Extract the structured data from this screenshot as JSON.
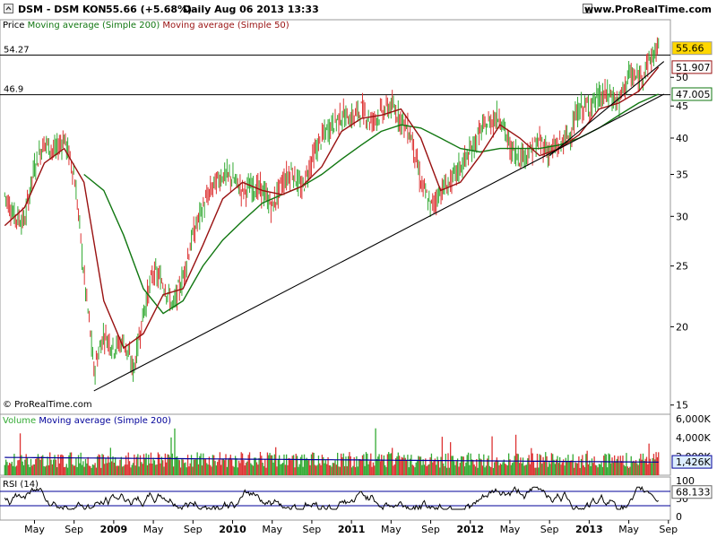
{
  "header": {
    "title": "DSM - DSM KON",
    "price_change": "55.66 (+5.68%)",
    "period_date": "Daily  Aug 06 2013 13:33",
    "site": "www.ProRealTime.com"
  },
  "panels": {
    "price": {
      "legend_price": "Price",
      "legend_ma200": "Moving average (Simple 200)",
      "legend_ma50": "Moving average (Simple 50)",
      "copyright": "© ProRealTime.com"
    },
    "volume": {
      "legend_volume": "Volume",
      "legend_ma": "Moving average (Simple 200)"
    },
    "rsi": {
      "legend": "RSI (14)"
    }
  },
  "colors": {
    "price_up": "#33aa33",
    "price_down": "#dd3333",
    "ma200": "#117711",
    "ma50": "#991111",
    "vol_ma": "#000099",
    "rsi_line": "#000000",
    "rsi_band": "#000099",
    "badge_price": "#ffd700"
  },
  "chart_data": {
    "type": "line",
    "price_axis": {
      "scale": "log",
      "ticks": [
        "15",
        "20",
        "25",
        "30",
        "35",
        "40",
        "45",
        "50"
      ]
    },
    "x_tick_labels": [
      "May",
      "Sep",
      "2009",
      "May",
      "Sep",
      "2010",
      "May",
      "Sep",
      "2011",
      "May",
      "Sep",
      "2012",
      "May",
      "Sep",
      "2013",
      "May",
      "Sep"
    ],
    "horizontal_levels": [
      {
        "label": "54.27",
        "value": 54.27
      },
      {
        "label": "46.9",
        "value": 46.9
      }
    ],
    "trendlines": [
      {
        "from": [
          "2008-11",
          15.8
        ],
        "to": [
          "2013-08",
          47.0
        ]
      },
      {
        "from": [
          "2012-09",
          37.5
        ],
        "to": [
          "2013-08",
          53.0
        ]
      }
    ],
    "badges": {
      "price": "55.66",
      "ma50": "51.907",
      "ma200": "47.005",
      "volume_ma": "1,426K",
      "rsi": "68.133"
    },
    "series": [
      {
        "name": "Price",
        "points": [
          [
            "2008-02",
            32.5
          ],
          [
            "2008-03",
            30.0
          ],
          [
            "2008-04",
            29.5
          ],
          [
            "2008-05",
            36.0
          ],
          [
            "2008-06",
            39.5
          ],
          [
            "2008-07",
            38.0
          ],
          [
            "2008-08",
            40.0
          ],
          [
            "2008-09",
            35.0
          ],
          [
            "2008-10",
            24.0
          ],
          [
            "2008-11",
            17.0
          ],
          [
            "2008-12",
            19.5
          ],
          [
            "2009-01",
            18.5
          ],
          [
            "2009-02",
            19.0
          ],
          [
            "2009-03",
            17.0
          ],
          [
            "2009-04",
            21.0
          ],
          [
            "2009-05",
            24.5
          ],
          [
            "2009-06",
            23.5
          ],
          [
            "2009-07",
            21.5
          ],
          [
            "2009-08",
            24.0
          ],
          [
            "2009-09",
            28.0
          ],
          [
            "2009-10",
            31.0
          ],
          [
            "2009-11",
            33.5
          ],
          [
            "2009-12",
            35.0
          ],
          [
            "2010-01",
            34.5
          ],
          [
            "2010-02",
            33.0
          ],
          [
            "2010-03",
            33.5
          ],
          [
            "2010-04",
            33.0
          ],
          [
            "2010-05",
            31.0
          ],
          [
            "2010-06",
            34.0
          ],
          [
            "2010-07",
            35.5
          ],
          [
            "2010-08",
            33.0
          ],
          [
            "2010-09",
            37.0
          ],
          [
            "2010-10",
            40.0
          ],
          [
            "2010-11",
            42.0
          ],
          [
            "2010-12",
            43.5
          ],
          [
            "2011-01",
            43.0
          ],
          [
            "2011-02",
            44.5
          ],
          [
            "2011-03",
            42.5
          ],
          [
            "2011-04",
            44.0
          ],
          [
            "2011-05",
            45.0
          ],
          [
            "2011-06",
            43.0
          ],
          [
            "2011-07",
            40.5
          ],
          [
            "2011-08",
            34.0
          ],
          [
            "2011-09",
            31.0
          ],
          [
            "2011-10",
            33.0
          ],
          [
            "2011-11",
            34.0
          ],
          [
            "2011-12",
            36.0
          ],
          [
            "2012-01",
            38.0
          ],
          [
            "2012-02",
            41.0
          ],
          [
            "2012-03",
            42.5
          ],
          [
            "2012-04",
            43.5
          ],
          [
            "2012-05",
            38.5
          ],
          [
            "2012-06",
            37.5
          ],
          [
            "2012-07",
            38.0
          ],
          [
            "2012-08",
            39.5
          ],
          [
            "2012-09",
            38.0
          ],
          [
            "2012-10",
            39.0
          ],
          [
            "2012-11",
            40.5
          ],
          [
            "2012-12",
            44.5
          ],
          [
            "2013-01",
            45.0
          ],
          [
            "2013-02",
            46.5
          ],
          [
            "2013-03",
            47.0
          ],
          [
            "2013-04",
            45.5
          ],
          [
            "2013-05",
            50.5
          ],
          [
            "2013-06",
            49.5
          ],
          [
            "2013-07",
            53.0
          ],
          [
            "2013-08",
            55.66
          ]
        ]
      },
      {
        "name": "Moving average (Simple 200)",
        "points": [
          [
            "2008-10",
            35.0
          ],
          [
            "2008-12",
            33.0
          ],
          [
            "2009-02",
            28.0
          ],
          [
            "2009-04",
            23.0
          ],
          [
            "2009-06",
            21.0
          ],
          [
            "2009-08",
            22.0
          ],
          [
            "2009-10",
            25.0
          ],
          [
            "2009-12",
            27.5
          ],
          [
            "2010-02",
            29.5
          ],
          [
            "2010-04",
            31.5
          ],
          [
            "2010-06",
            32.5
          ],
          [
            "2010-08",
            33.5
          ],
          [
            "2010-10",
            35.0
          ],
          [
            "2010-12",
            37.0
          ],
          [
            "2011-02",
            39.0
          ],
          [
            "2011-04",
            41.0
          ],
          [
            "2011-06",
            42.0
          ],
          [
            "2011-08",
            41.5
          ],
          [
            "2011-10",
            40.0
          ],
          [
            "2011-12",
            38.5
          ],
          [
            "2012-02",
            38.0
          ],
          [
            "2012-04",
            38.5
          ],
          [
            "2012-06",
            38.5
          ],
          [
            "2012-08",
            38.5
          ],
          [
            "2012-10",
            39.0
          ],
          [
            "2012-12",
            40.0
          ],
          [
            "2013-02",
            41.5
          ],
          [
            "2013-04",
            43.5
          ],
          [
            "2013-06",
            45.5
          ],
          [
            "2013-08",
            47.005
          ]
        ]
      },
      {
        "name": "Moving average (Simple 50)",
        "points": [
          [
            "2008-02",
            29.0
          ],
          [
            "2008-04",
            31.0
          ],
          [
            "2008-06",
            36.5
          ],
          [
            "2008-08",
            38.5
          ],
          [
            "2008-10",
            34.0
          ],
          [
            "2008-12",
            22.0
          ],
          [
            "2009-02",
            18.5
          ],
          [
            "2009-04",
            19.5
          ],
          [
            "2009-06",
            22.5
          ],
          [
            "2009-08",
            23.0
          ],
          [
            "2009-10",
            27.0
          ],
          [
            "2009-12",
            32.0
          ],
          [
            "2010-02",
            34.0
          ],
          [
            "2010-04",
            33.0
          ],
          [
            "2010-06",
            32.5
          ],
          [
            "2010-08",
            33.5
          ],
          [
            "2010-10",
            36.0
          ],
          [
            "2010-12",
            41.0
          ],
          [
            "2011-02",
            43.0
          ],
          [
            "2011-04",
            43.5
          ],
          [
            "2011-06",
            44.5
          ],
          [
            "2011-08",
            40.0
          ],
          [
            "2011-10",
            33.0
          ],
          [
            "2011-12",
            34.0
          ],
          [
            "2012-02",
            37.5
          ],
          [
            "2012-04",
            42.0
          ],
          [
            "2012-06",
            40.0
          ],
          [
            "2012-08",
            37.5
          ],
          [
            "2012-10",
            38.5
          ],
          [
            "2012-12",
            40.5
          ],
          [
            "2013-02",
            44.5
          ],
          [
            "2013-04",
            45.5
          ],
          [
            "2013-06",
            47.5
          ],
          [
            "2013-08",
            51.907
          ]
        ]
      },
      {
        "name": "Volume",
        "unit": "shares",
        "axis_ticks": [
          "2,000K",
          "4,000K",
          "6,000K"
        ]
      },
      {
        "name": "RSI (14)",
        "axis_ticks": [
          "0",
          "50",
          "100"
        ],
        "bands": [
          30,
          70
        ]
      }
    ]
  }
}
